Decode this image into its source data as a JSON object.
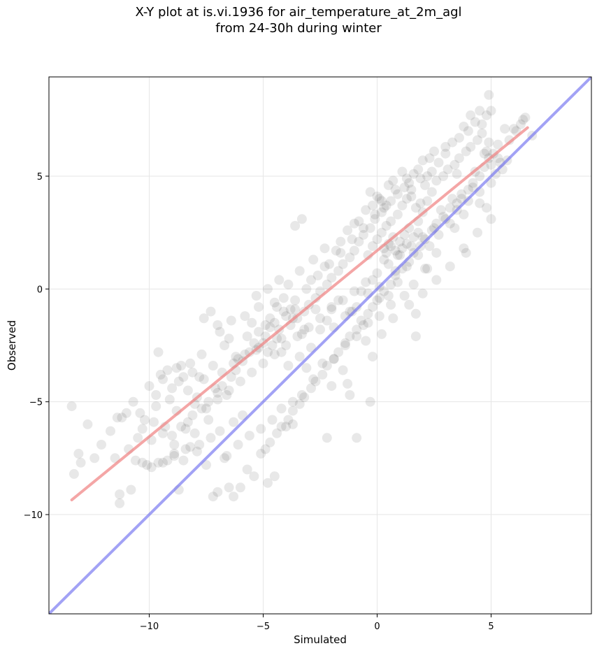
{
  "chart_data": {
    "type": "scatter",
    "title_line1": "X-Y plot at is.vi.1936 for air_temperature_at_2m_agl",
    "title_line2": "from 24-30h during winter",
    "xlabel": "Simulated",
    "ylabel": "Observed",
    "xlim": [
      -14.4,
      9.4
    ],
    "ylim": [
      -14.4,
      9.4
    ],
    "xticks": [
      -10,
      -5,
      0,
      5
    ],
    "yticks": [
      -10,
      -5,
      0,
      5
    ],
    "xtick_labels": [
      "−10",
      "−5",
      "0",
      "5"
    ],
    "ytick_labels": [
      "−10",
      "−5",
      "0",
      "5"
    ],
    "grid": true,
    "point_color": "#000000",
    "point_alpha": 0.09,
    "regression_line": {
      "color": "#f08080",
      "x": [
        -13.4,
        6.6
      ],
      "y": [
        -9.35,
        7.15
      ]
    },
    "identity_line": {
      "color": "#7070f0",
      "x": [
        -14.4,
        9.4
      ],
      "y": [
        -14.4,
        9.4
      ]
    },
    "points": [
      [
        -13.4,
        -5.2
      ],
      [
        -13.3,
        -8.2
      ],
      [
        -13.1,
        -7.3
      ],
      [
        -13.0,
        -7.7
      ],
      [
        -12.7,
        -6.0
      ],
      [
        -12.4,
        -7.5
      ],
      [
        -11.3,
        -9.1
      ],
      [
        -11.3,
        -9.5
      ],
      [
        -10.8,
        -8.9
      ],
      [
        -10.6,
        -7.6
      ],
      [
        -10.4,
        -5.5
      ],
      [
        -10.3,
        -7.7
      ],
      [
        -10.1,
        -7.8
      ],
      [
        -9.9,
        -7.9
      ],
      [
        -9.6,
        -7.7
      ],
      [
        -9.2,
        -7.6
      ],
      [
        -8.9,
        -7.3
      ],
      [
        -8.7,
        -8.9
      ],
      [
        -8.5,
        -7.6
      ],
      [
        -8.2,
        -7.0
      ],
      [
        -7.9,
        -7.2
      ],
      [
        -7.5,
        -7.8
      ],
      [
        -7.2,
        -9.2
      ],
      [
        -7.0,
        -9.0
      ],
      [
        -6.7,
        -7.5
      ],
      [
        -6.5,
        -8.8
      ],
      [
        -6.3,
        -9.2
      ],
      [
        -6.0,
        -8.8
      ],
      [
        -5.7,
        -8.0
      ],
      [
        -5.4,
        -8.3
      ],
      [
        -5.1,
        -7.3
      ],
      [
        -4.8,
        -8.6
      ],
      [
        -4.5,
        -8.3
      ],
      [
        -4.0,
        -6.1
      ],
      [
        -3.7,
        -6.0
      ],
      [
        -3.6,
        2.8
      ],
      [
        -3.3,
        3.1
      ],
      [
        -2.2,
        -6.6
      ],
      [
        -0.9,
        -6.6
      ],
      [
        -0.2,
        -3.0
      ],
      [
        -0.3,
        -5.0
      ],
      [
        1.7,
        -2.1
      ],
      [
        1.7,
        -1.1
      ],
      [
        -2.0,
        -4.3
      ],
      [
        -1.3,
        -4.2
      ],
      [
        -1.2,
        -4.7
      ],
      [
        -9.6,
        -2.8
      ],
      [
        -10.0,
        -4.3
      ],
      [
        -11.2,
        -5.7
      ],
      [
        -11.4,
        -5.7
      ],
      [
        -11.0,
        -5.5
      ],
      [
        -10.7,
        -5.0
      ],
      [
        -9.5,
        -3.8
      ],
      [
        -9.1,
        -4.9
      ],
      [
        -8.6,
        -3.4
      ],
      [
        -7.8,
        -3.9
      ],
      [
        -7.3,
        -1.0
      ],
      [
        -7.0,
        -1.6
      ],
      [
        -6.5,
        -2.2
      ],
      [
        -6.1,
        -3.1
      ],
      [
        -5.8,
        -1.2
      ],
      [
        -5.5,
        -1.5
      ],
      [
        -5.2,
        -0.8
      ],
      [
        -4.9,
        -1.6
      ],
      [
        -4.5,
        -0.6
      ],
      [
        -4.2,
        -2.8
      ],
      [
        -3.9,
        0.2
      ],
      [
        -3.6,
        -0.9
      ],
      [
        -3.3,
        -2.0
      ],
      [
        -3.1,
        -3.5
      ],
      [
        -2.9,
        0.4
      ],
      [
        -2.5,
        -1.8
      ],
      [
        -2.3,
        1.0
      ],
      [
        -2.0,
        -0.8
      ],
      [
        -1.8,
        1.7
      ],
      [
        -1.5,
        -3.6
      ],
      [
        -1.3,
        2.6
      ],
      [
        -1.1,
        -1.0
      ],
      [
        -0.8,
        3.0
      ],
      [
        -0.6,
        -1.6
      ],
      [
        -0.3,
        4.3
      ],
      [
        0.0,
        -0.5
      ],
      [
        0.2,
        3.9
      ],
      [
        0.5,
        -0.3
      ],
      [
        0.7,
        4.8
      ],
      [
        0.9,
        0.3
      ],
      [
        1.1,
        5.2
      ],
      [
        1.3,
        1.0
      ],
      [
        1.5,
        4.1
      ],
      [
        1.8,
        1.5
      ],
      [
        2.0,
        5.7
      ],
      [
        2.2,
        0.9
      ],
      [
        2.5,
        6.1
      ],
      [
        2.7,
        2.4
      ],
      [
        3.0,
        6.3
      ],
      [
        3.2,
        2.9
      ],
      [
        3.5,
        5.1
      ],
      [
        3.7,
        4.0
      ],
      [
        4.0,
        7.0
      ],
      [
        4.2,
        4.5
      ],
      [
        4.5,
        7.9
      ],
      [
        4.7,
        6.0
      ],
      [
        5.0,
        5.5
      ],
      [
        5.2,
        5.1
      ],
      [
        5.4,
        5.6
      ],
      [
        6.3,
        7.3
      ],
      [
        6.5,
        7.6
      ],
      [
        6.8,
        6.8
      ],
      [
        6.0,
        7.1
      ],
      [
        4.9,
        8.6
      ],
      [
        4.8,
        3.6
      ],
      [
        4.5,
        3.8
      ],
      [
        3.8,
        1.8
      ],
      [
        3.4,
        2.7
      ],
      [
        2.6,
        1.6
      ],
      [
        2.1,
        0.9
      ],
      [
        1.6,
        0.2
      ],
      [
        1.2,
        -0.3
      ],
      [
        0.6,
        -0.7
      ],
      [
        0.1,
        -1.2
      ],
      [
        -0.4,
        -1.5
      ],
      [
        -0.9,
        -2.1
      ],
      [
        -1.4,
        -2.5
      ],
      [
        -1.9,
        -3.1
      ],
      [
        -2.4,
        -3.3
      ],
      [
        -2.8,
        -4.0
      ],
      [
        -3.3,
        -4.7
      ],
      [
        -3.7,
        -5.0
      ],
      [
        -4.2,
        -5.3
      ],
      [
        -4.6,
        -5.8
      ],
      [
        -5.1,
        -6.2
      ],
      [
        -5.6,
        -6.5
      ],
      [
        -6.1,
        -6.9
      ],
      [
        -6.6,
        -7.4
      ],
      [
        -7.4,
        -5.8
      ],
      [
        -8.0,
        -5.1
      ],
      [
        -8.4,
        -6.2
      ],
      [
        -8.8,
        -5.4
      ],
      [
        -9.3,
        -6.1
      ],
      [
        -9.8,
        -5.9
      ],
      [
        -10.3,
        -6.2
      ],
      [
        -9.9,
        -6.7
      ],
      [
        -9.4,
        -6.4
      ],
      [
        -8.9,
        -6.9
      ],
      [
        -8.0,
        -6.4
      ],
      [
        -7.5,
        -5.3
      ],
      [
        -7.0,
        -4.9
      ],
      [
        -6.5,
        -4.5
      ],
      [
        -6.0,
        -4.1
      ],
      [
        -5.5,
        -3.7
      ],
      [
        -5.0,
        -3.3
      ],
      [
        -4.5,
        -2.9
      ],
      [
        -4.0,
        -2.5
      ],
      [
        -3.5,
        -2.1
      ],
      [
        -3.0,
        -1.7
      ],
      [
        -2.5,
        -1.3
      ],
      [
        -2.0,
        -0.9
      ],
      [
        -1.5,
        -0.5
      ],
      [
        -1.0,
        -0.1
      ],
      [
        -0.5,
        0.3
      ],
      [
        0.0,
        0.7
      ],
      [
        0.5,
        1.1
      ],
      [
        1.0,
        1.5
      ],
      [
        1.5,
        1.9
      ],
      [
        2.0,
        2.3
      ],
      [
        2.5,
        2.7
      ],
      [
        3.0,
        3.1
      ],
      [
        3.5,
        3.5
      ],
      [
        4.0,
        3.9
      ],
      [
        4.5,
        4.3
      ],
      [
        5.0,
        4.7
      ],
      [
        -9.7,
        -4.7
      ],
      [
        -9.2,
        -3.6
      ],
      [
        -8.7,
        -4.1
      ],
      [
        -8.2,
        -3.3
      ],
      [
        -7.7,
        -2.9
      ],
      [
        -7.2,
        -3.4
      ],
      [
        -6.7,
        -2.5
      ],
      [
        -6.2,
        -3.0
      ],
      [
        -5.7,
        -2.1
      ],
      [
        -5.2,
        -2.6
      ],
      [
        -4.7,
        -1.7
      ],
      [
        -4.2,
        -2.2
      ],
      [
        -3.7,
        -1.3
      ],
      [
        -3.2,
        -1.8
      ],
      [
        -2.7,
        -0.9
      ],
      [
        -2.2,
        -1.4
      ],
      [
        -1.7,
        -0.5
      ],
      [
        -1.2,
        -1.0
      ],
      [
        -0.7,
        -0.1
      ],
      [
        -0.2,
        0.4
      ],
      [
        0.3,
        1.3
      ],
      [
        0.8,
        0.8
      ],
      [
        1.3,
        2.0
      ],
      [
        1.8,
        2.5
      ],
      [
        2.3,
        1.9
      ],
      [
        2.8,
        3.5
      ],
      [
        3.3,
        4.0
      ],
      [
        3.8,
        3.3
      ],
      [
        4.3,
        5.2
      ],
      [
        4.8,
        6.1
      ],
      [
        5.3,
        5.8
      ],
      [
        -4.6,
        -2.5
      ],
      [
        -4.4,
        -2.2
      ],
      [
        -4.8,
        -2.8
      ],
      [
        -5.0,
        -2.4
      ],
      [
        -4.3,
        -1.8
      ],
      [
        -4.0,
        -1.2
      ],
      [
        -3.8,
        -0.9
      ],
      [
        -4.1,
        -0.4
      ],
      [
        -4.4,
        -0.8
      ],
      [
        -4.7,
        -1.3
      ],
      [
        -5.2,
        -1.9
      ],
      [
        -5.4,
        -2.4
      ],
      [
        -5.6,
        -2.8
      ],
      [
        -5.9,
        -3.2
      ],
      [
        -6.2,
        -3.6
      ],
      [
        -6.4,
        -3.9
      ],
      [
        -6.8,
        -4.3
      ],
      [
        -7.0,
        -4.6
      ],
      [
        -7.4,
        -5.0
      ],
      [
        -7.7,
        -5.3
      ],
      [
        -8.1,
        -5.6
      ],
      [
        -8.3,
        -5.9
      ],
      [
        -8.6,
        -6.1
      ],
      [
        -9.0,
        -6.5
      ],
      [
        0.4,
        1.6
      ],
      [
        0.6,
        1.9
      ],
      [
        0.8,
        1.7
      ],
      [
        1.0,
        2.1
      ],
      [
        0.7,
        2.3
      ],
      [
        0.9,
        1.5
      ],
      [
        1.1,
        1.8
      ],
      [
        0.5,
        2.0
      ],
      [
        0.3,
        1.8
      ],
      [
        1.2,
        2.4
      ],
      [
        1.4,
        2.7
      ],
      [
        1.6,
        2.3
      ],
      [
        0.2,
        2.5
      ],
      [
        0.0,
        2.2
      ],
      [
        -0.2,
        1.9
      ],
      [
        -0.4,
        1.5
      ],
      [
        1.8,
        3.0
      ],
      [
        2.0,
        3.4
      ],
      [
        1.9,
        3.8
      ],
      [
        1.7,
        3.6
      ],
      [
        2.2,
        3.9
      ],
      [
        2.4,
        4.3
      ],
      [
        2.1,
        4.6
      ],
      [
        1.5,
        4.4
      ],
      [
        1.3,
        4.0
      ],
      [
        1.1,
        3.7
      ],
      [
        0.9,
        3.3
      ],
      [
        0.6,
        3.0
      ],
      [
        0.4,
        2.8
      ],
      [
        0.2,
        3.4
      ],
      [
        -0.1,
        3.1
      ],
      [
        -0.3,
        2.7
      ],
      [
        -0.6,
        2.4
      ],
      [
        -0.8,
        2.1
      ],
      [
        -1.0,
        1.7
      ],
      [
        -1.2,
        1.4
      ],
      [
        -1.5,
        1.1
      ],
      [
        -1.7,
        0.8
      ],
      [
        -2.0,
        0.5
      ],
      [
        -2.2,
        0.2
      ],
      [
        -2.5,
        -0.1
      ],
      [
        -2.7,
        -0.4
      ],
      [
        -3.0,
        -0.7
      ],
      [
        -3.2,
        -1.0
      ],
      [
        -3.5,
        -1.3
      ],
      [
        -3.8,
        -1.6
      ],
      [
        2.6,
        4.8
      ],
      [
        2.9,
        5.0
      ],
      [
        3.1,
        5.3
      ],
      [
        3.4,
        5.5
      ],
      [
        3.6,
        5.8
      ],
      [
        3.9,
        6.1
      ],
      [
        4.1,
        6.3
      ],
      [
        4.4,
        6.6
      ],
      [
        4.6,
        6.9
      ],
      [
        4.3,
        7.4
      ],
      [
        4.1,
        7.7
      ],
      [
        3.8,
        7.2
      ],
      [
        3.6,
        6.7
      ],
      [
        3.3,
        6.5
      ],
      [
        3.0,
        6.0
      ],
      [
        2.7,
        5.6
      ],
      [
        2.4,
        5.2
      ],
      [
        2.2,
        5.0
      ],
      [
        1.9,
        4.9
      ],
      [
        1.6,
        5.1
      ],
      [
        1.4,
        4.7
      ],
      [
        1.2,
        4.5
      ],
      [
        0.9,
        4.2
      ],
      [
        0.6,
        3.9
      ],
      [
        0.3,
        3.6
      ],
      [
        0.1,
        4.0
      ],
      [
        -0.2,
        3.7
      ],
      [
        5.1,
        6.0
      ],
      [
        5.3,
        6.4
      ],
      [
        4.9,
        6.5
      ],
      [
        4.6,
        7.3
      ],
      [
        4.8,
        7.7
      ],
      [
        5.0,
        7.9
      ],
      [
        5.6,
        7.1
      ],
      [
        5.8,
        6.6
      ],
      [
        6.1,
        7.0
      ],
      [
        6.4,
        7.5
      ],
      [
        5.5,
        5.3
      ],
      [
        5.7,
        5.7
      ],
      [
        4.9,
        5.8
      ],
      [
        4.7,
        5.4
      ],
      [
        4.5,
        5.0
      ],
      [
        4.2,
        4.7
      ],
      [
        4.0,
        4.4
      ],
      [
        3.7,
        4.2
      ],
      [
        3.5,
        3.8
      ],
      [
        3.2,
        3.6
      ],
      [
        2.9,
        3.2
      ],
      [
        2.6,
        2.9
      ],
      [
        2.4,
        2.6
      ],
      [
        2.1,
        2.2
      ],
      [
        1.9,
        1.9
      ],
      [
        1.6,
        1.6
      ],
      [
        1.4,
        1.2
      ],
      [
        1.1,
        0.9
      ],
      [
        0.8,
        0.6
      ],
      [
        0.6,
        0.2
      ],
      [
        0.3,
        -0.1
      ],
      [
        0.1,
        -0.4
      ],
      [
        -0.2,
        -0.8
      ],
      [
        -0.4,
        -1.1
      ],
      [
        -0.7,
        -1.4
      ],
      [
        -0.9,
        -1.8
      ],
      [
        -1.2,
        -2.1
      ],
      [
        -1.4,
        -2.4
      ],
      [
        -1.7,
        -2.8
      ],
      [
        -1.9,
        -3.1
      ],
      [
        -2.2,
        -3.4
      ],
      [
        -2.4,
        -3.8
      ],
      [
        -2.7,
        -4.1
      ],
      [
        -2.9,
        -4.4
      ],
      [
        -3.2,
        -4.8
      ],
      [
        -3.4,
        -5.1
      ],
      [
        -3.7,
        -5.4
      ],
      [
        -3.9,
        -5.8
      ],
      [
        -4.2,
        -6.1
      ],
      [
        -4.4,
        -6.4
      ],
      [
        -4.7,
        -6.8
      ],
      [
        -4.9,
        -7.1
      ],
      [
        -5.9,
        -5.6
      ],
      [
        -6.3,
        -5.9
      ],
      [
        -6.9,
        -6.3
      ],
      [
        -7.3,
        -6.6
      ],
      [
        -7.8,
        -6.9
      ],
      [
        -8.4,
        -7.1
      ],
      [
        -8.9,
        -7.4
      ],
      [
        -9.4,
        -7.7
      ],
      [
        -6.6,
        -4.7
      ],
      [
        -7.1,
        -4.4
      ],
      [
        -7.6,
        -4.0
      ],
      [
        -8.1,
        -3.7
      ],
      [
        -8.5,
        -3.9
      ],
      [
        -9.0,
        -4.4
      ],
      [
        -9.4,
        -4.0
      ],
      [
        -8.8,
        -3.5
      ],
      [
        -8.3,
        -4.5
      ],
      [
        -7.9,
        -4.8
      ],
      [
        -6.8,
        -3.7
      ],
      [
        -6.3,
        -3.3
      ],
      [
        -5.8,
        -2.9
      ],
      [
        -5.3,
        -2.7
      ],
      [
        -4.9,
        -2.1
      ],
      [
        -4.5,
        -1.5
      ],
      [
        -4.1,
        -1.0
      ],
      [
        -3.6,
        -0.5
      ],
      [
        -3.1,
        0.0
      ],
      [
        -2.6,
        0.6
      ],
      [
        -2.1,
        1.1
      ],
      [
        -1.6,
        1.6
      ],
      [
        -1.1,
        2.2
      ],
      [
        -0.6,
        2.7
      ],
      [
        -0.1,
        3.3
      ],
      [
        0.4,
        3.7
      ],
      [
        0.8,
        4.4
      ],
      [
        1.3,
        4.9
      ],
      [
        1.8,
        5.3
      ],
      [
        2.3,
        5.8
      ],
      [
        -2.9,
        -2.6
      ],
      [
        -3.4,
        -3.0
      ],
      [
        -3.9,
        -3.4
      ],
      [
        -1.9,
        -1.7
      ],
      [
        -1.4,
        -1.2
      ],
      [
        -0.9,
        -0.8
      ],
      [
        -0.4,
        -0.2
      ],
      [
        0.1,
        0.1
      ],
      [
        -10.5,
        -6.6
      ],
      [
        -10.9,
        -7.1
      ],
      [
        -11.7,
        -6.3
      ],
      [
        -12.1,
        -6.9
      ],
      [
        -11.5,
        -7.5
      ],
      [
        -10.2,
        -5.8
      ],
      [
        -9.7,
        -5.2
      ],
      [
        -7.6,
        -1.3
      ],
      [
        -6.9,
        -1.9
      ],
      [
        -6.4,
        -1.4
      ],
      [
        -5.3,
        -0.3
      ],
      [
        -4.8,
        0.0
      ],
      [
        -4.3,
        0.4
      ],
      [
        -3.4,
        0.8
      ],
      [
        -2.8,
        1.3
      ],
      [
        -2.3,
        1.8
      ],
      [
        -1.6,
        2.1
      ],
      [
        -1.0,
        2.9
      ],
      [
        -0.5,
        3.5
      ],
      [
        0.0,
        4.1
      ],
      [
        0.5,
        4.6
      ],
      [
        -0.5,
        -2.3
      ],
      [
        0.2,
        -2.0
      ],
      [
        0.7,
        -1.3
      ],
      [
        1.4,
        -0.7
      ],
      [
        2.0,
        -0.2
      ],
      [
        2.6,
        0.4
      ],
      [
        3.2,
        1.0
      ],
      [
        3.9,
        1.6
      ],
      [
        4.4,
        2.5
      ],
      [
        5.0,
        3.1
      ]
    ]
  }
}
